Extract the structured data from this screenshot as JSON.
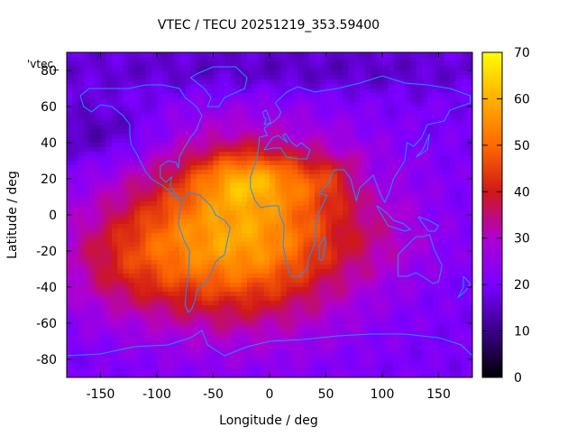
{
  "chart_data": {
    "type": "heatmap",
    "title": "VTEC / TECU 20251219_353.59400",
    "xlabel": "Longitude / deg",
    "ylabel": "Latitude / deg",
    "key_label": "'vtec_",
    "xlim": [
      -180,
      180
    ],
    "ylim": [
      -90,
      90
    ],
    "xticks": [
      -150,
      -100,
      -50,
      0,
      50,
      100,
      150
    ],
    "yticks": [
      -80,
      -60,
      -40,
      -20,
      0,
      20,
      40,
      60,
      80
    ],
    "colorbar": {
      "min": 0,
      "max": 70,
      "ticks": [
        0,
        10,
        20,
        30,
        40,
        50,
        60,
        70
      ]
    },
    "palette": [
      "#000000",
      "#3a0088",
      "#7a00ff",
      "#b000d0",
      "#d01818",
      "#ff6a00",
      "#ffb000",
      "#ffff00"
    ],
    "coastline_color": "#1e90ff",
    "grid": false,
    "features": [
      {
        "lon": -25,
        "lat": -10,
        "peak": 38,
        "slon": 70,
        "slat": 35
      },
      {
        "lon": -20,
        "lat": 20,
        "peak": 14,
        "slon": 30,
        "slat": 10
      },
      {
        "lon": -130,
        "lat": -25,
        "peak": 12,
        "slon": 45,
        "slat": 22
      },
      {
        "lon": 70,
        "lat": 20,
        "peak": 12,
        "slon": 35,
        "slat": 10
      },
      {
        "lon": 100,
        "lat": -15,
        "peak": 5,
        "slon": 40,
        "slat": 15
      },
      {
        "lon": 90,
        "lat": 20,
        "peak": -10,
        "slon": 20,
        "slat": 8
      },
      {
        "lon": -150,
        "lat": 45,
        "peak": -8,
        "slon": 40,
        "slat": 12
      },
      {
        "lon": 0,
        "lat": 80,
        "peak": -6,
        "slon": 150,
        "slat": 10
      }
    ],
    "base_value": 20
  }
}
